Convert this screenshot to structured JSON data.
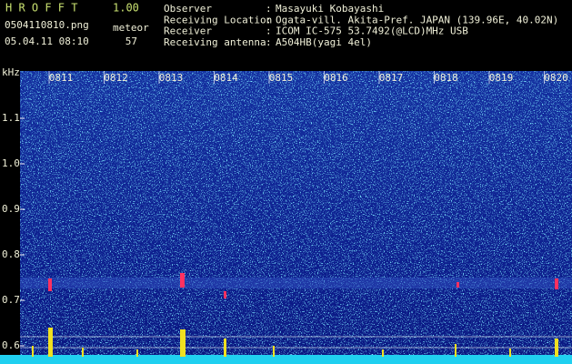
{
  "header": {
    "app": "H R O F F T",
    "version": "1.00",
    "filename": "0504110810.png",
    "datetime": "05.04.11 08:10",
    "meteor_label": "meteor",
    "meteor_count": "57"
  },
  "info": [
    {
      "label": "Observer",
      "value": "Masayuki Kobayashi"
    },
    {
      "label": "Receiving Location",
      "value": "Ogata-vill. Akita-Pref. JAPAN (139.96E, 40.02N)"
    },
    {
      "label": "Receiver",
      "value": "ICOM IC-575 53.7492(@LCD)MHz USB"
    },
    {
      "label": "Receiving antenna",
      "value": "A504HB(yagi 4el)"
    }
  ],
  "separator": ":",
  "axis": {
    "unit": "kHz",
    "y_labels": [
      "1.1",
      "1.0",
      "0.9",
      "0.8",
      "0.7",
      "0.6"
    ],
    "x_labels": [
      "0811",
      "0812",
      "0813",
      "0814",
      "0815",
      "0816",
      "0817",
      "0818",
      "0819",
      "0820"
    ]
  }
}
